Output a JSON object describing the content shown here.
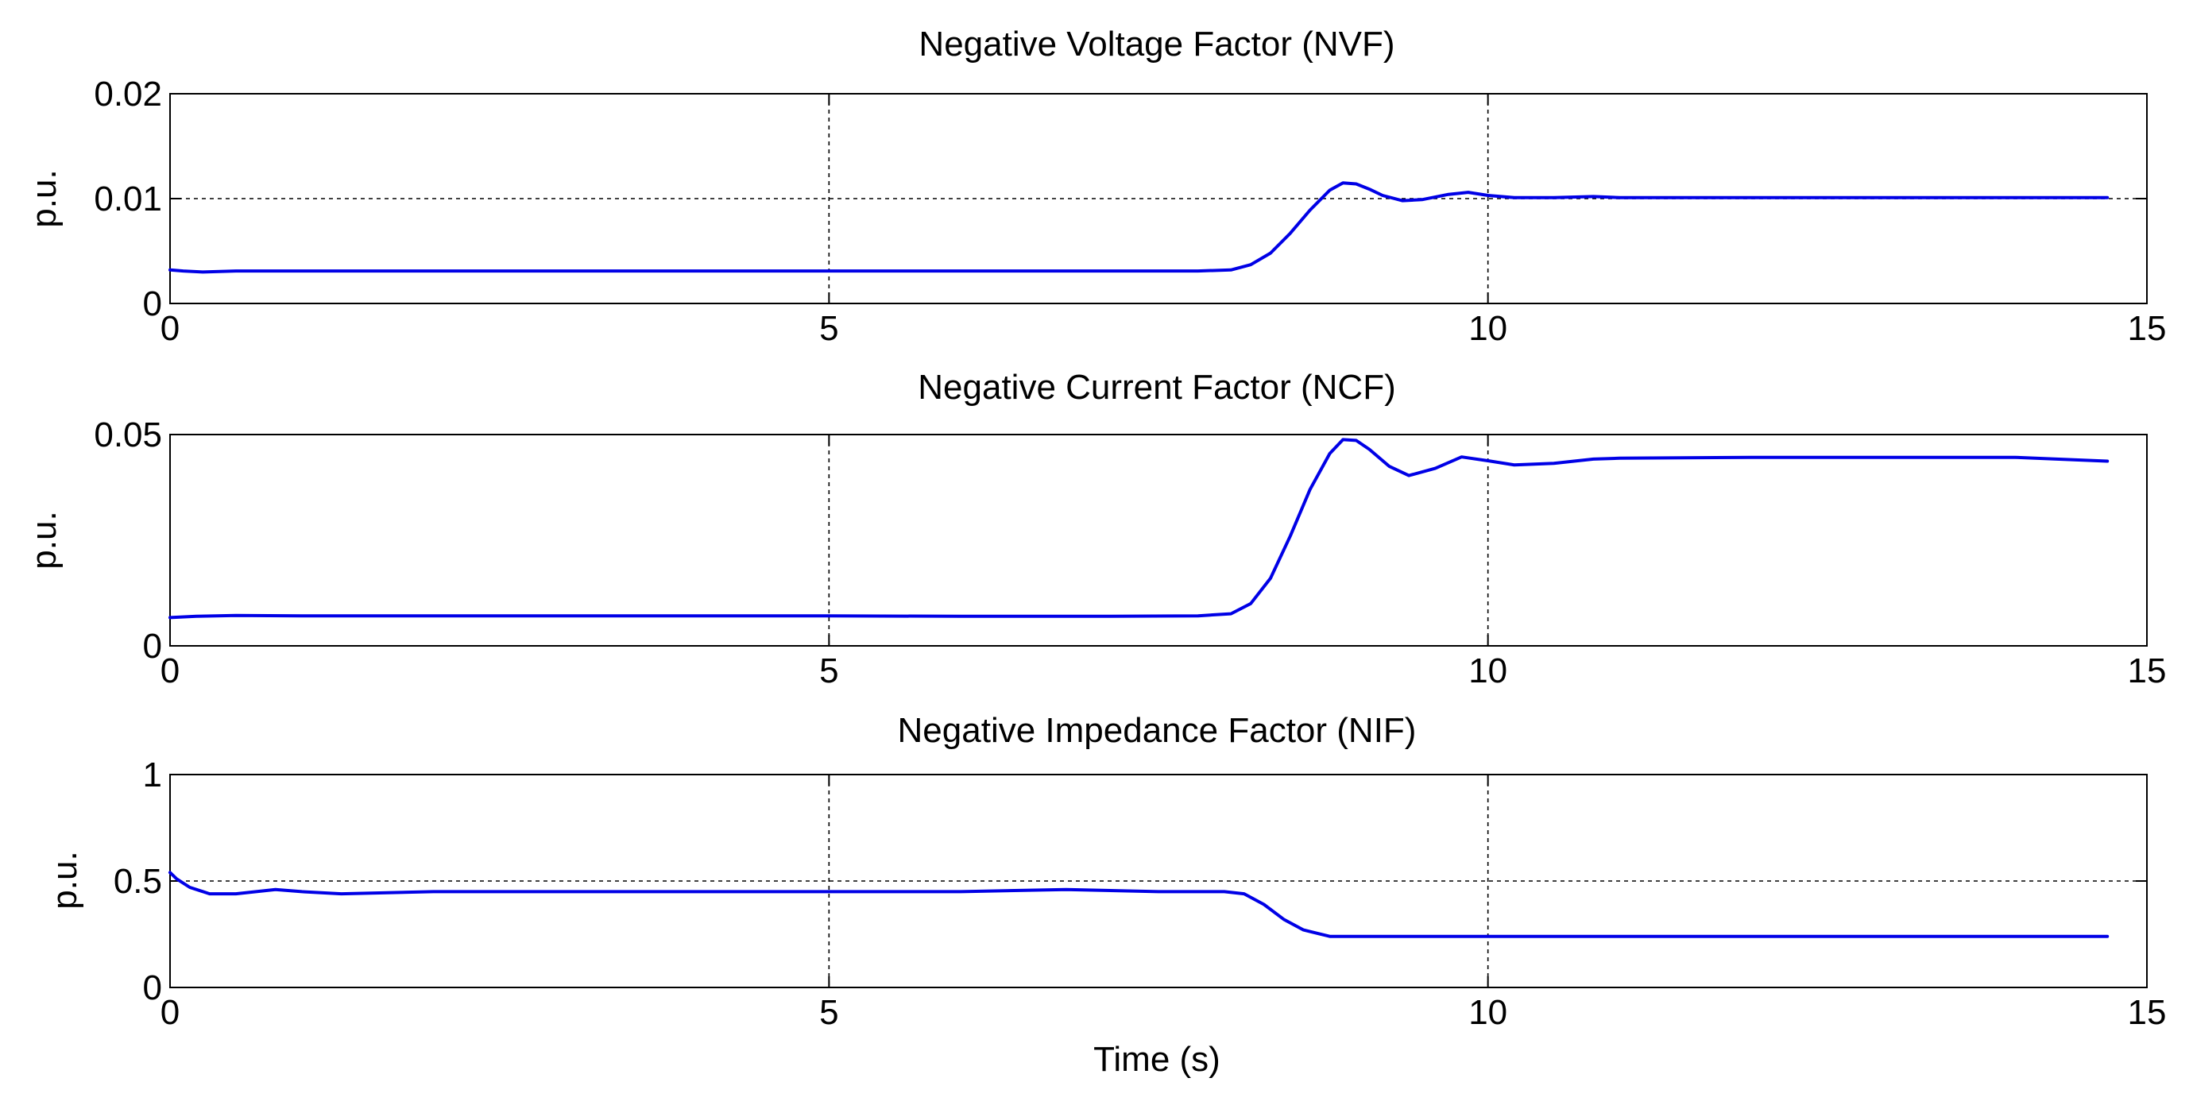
{
  "chart_data": [
    {
      "type": "line",
      "title": "Negative Voltage Factor (NVF)",
      "xlabel": "",
      "ylabel": "p.u.",
      "xlim": [
        0,
        15
      ],
      "ylim": [
        0,
        0.02
      ],
      "xticks": [
        0,
        5,
        10,
        15
      ],
      "xtick_labels": [
        "0",
        "5",
        "10",
        "15"
      ],
      "yticks": [
        0,
        0.01,
        0.02
      ],
      "ytick_labels": [
        "0",
        "0.01",
        "0.02"
      ],
      "grid": true,
      "line_color": "#0000e6",
      "series": [
        {
          "x": [
            0,
            0.1,
            0.25,
            0.5,
            1,
            2,
            3,
            4,
            5,
            6,
            7,
            7.8,
            8.05,
            8.2,
            8.35,
            8.5,
            8.65,
            8.8,
            8.9,
            9.0,
            9.1,
            9.2,
            9.35,
            9.5,
            9.7,
            9.85,
            10.0,
            10.2,
            10.5,
            10.8,
            11,
            12,
            13,
            14,
            14.7
          ],
          "y": [
            0.0032,
            0.0031,
            0.003,
            0.0031,
            0.0031,
            0.0031,
            0.0031,
            0.0031,
            0.0031,
            0.0031,
            0.0031,
            0.0031,
            0.0032,
            0.0037,
            0.0048,
            0.0067,
            0.0089,
            0.0108,
            0.0115,
            0.0114,
            0.0109,
            0.0103,
            0.0098,
            0.0099,
            0.0104,
            0.0106,
            0.0103,
            0.0101,
            0.0101,
            0.0102,
            0.0101,
            0.0101,
            0.0101,
            0.0101,
            0.0101
          ]
        }
      ]
    },
    {
      "type": "line",
      "title": "Negative Current Factor (NCF)",
      "xlabel": "",
      "ylabel": "p.u.",
      "xlim": [
        0,
        15
      ],
      "ylim": [
        0,
        0.05
      ],
      "xticks": [
        0,
        5,
        10,
        15
      ],
      "xtick_labels": [
        "0",
        "5",
        "10",
        "15"
      ],
      "yticks": [
        0,
        0.05
      ],
      "ytick_labels": [
        "0",
        "0.05"
      ],
      "grid": true,
      "line_color": "#0000e6",
      "series": [
        {
          "x": [
            0,
            0.2,
            0.5,
            1,
            2,
            3,
            4,
            5,
            6,
            7,
            7.8,
            8.05,
            8.2,
            8.35,
            8.5,
            8.65,
            8.8,
            8.9,
            9.0,
            9.1,
            9.25,
            9.4,
            9.6,
            9.8,
            10.0,
            10.2,
            10.5,
            10.8,
            11,
            12,
            13,
            14,
            14.7
          ],
          "y": [
            0.0067,
            0.007,
            0.0072,
            0.0071,
            0.0071,
            0.0071,
            0.0071,
            0.0071,
            0.007,
            0.007,
            0.0071,
            0.0076,
            0.01,
            0.016,
            0.026,
            0.037,
            0.0455,
            0.0488,
            0.0486,
            0.0465,
            0.0425,
            0.0403,
            0.042,
            0.0447,
            0.0438,
            0.0428,
            0.0432,
            0.0442,
            0.0444,
            0.0446,
            0.0446,
            0.0446,
            0.0437
          ]
        }
      ]
    },
    {
      "type": "line",
      "title": "Negative Impedance Factor (NIF)",
      "xlabel": "Time (s)",
      "ylabel": "p.u.",
      "xlim": [
        0,
        15
      ],
      "ylim": [
        0,
        1
      ],
      "xticks": [
        0,
        5,
        10,
        15
      ],
      "xtick_labels": [
        "0",
        "5",
        "10",
        "15"
      ],
      "yticks": [
        0,
        0.5,
        1
      ],
      "ytick_labels": [
        "0",
        "0.5",
        "1"
      ],
      "grid": true,
      "line_color": "#0000e6",
      "series": [
        {
          "x": [
            0,
            0.05,
            0.15,
            0.3,
            0.5,
            0.8,
            1,
            1.3,
            2,
            3,
            4,
            5,
            6,
            6.8,
            7.5,
            8.0,
            8.15,
            8.3,
            8.45,
            8.6,
            8.8,
            9.0,
            9.5,
            10,
            10.5,
            11,
            12,
            13,
            14,
            14.7
          ],
          "y": [
            0.54,
            0.51,
            0.47,
            0.44,
            0.44,
            0.46,
            0.45,
            0.44,
            0.45,
            0.45,
            0.45,
            0.45,
            0.45,
            0.46,
            0.45,
            0.45,
            0.44,
            0.39,
            0.32,
            0.27,
            0.24,
            0.24,
            0.24,
            0.24,
            0.24,
            0.24,
            0.24,
            0.24,
            0.24,
            0.24
          ]
        }
      ]
    }
  ]
}
